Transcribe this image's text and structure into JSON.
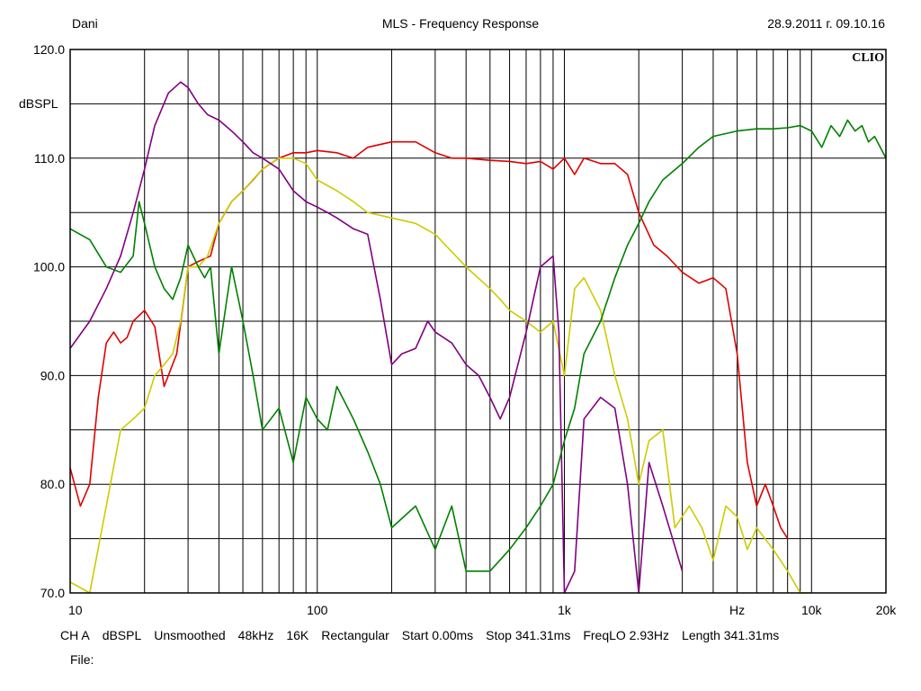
{
  "header": {
    "left": "Dani",
    "center": "MLS - Frequency Response",
    "right": "28.9.2011 г. 09.10.16"
  },
  "logo": "CLIO",
  "footer": {
    "items": [
      "CH A",
      "dBSPL",
      "Unsmoothed",
      "48kHz",
      "16K",
      "Rectangular",
      "Start 0.00ms",
      "Stop 341.31ms",
      "FreqLO 2.93Hz",
      "Length 341.31ms"
    ],
    "file_label": "File:"
  },
  "chart_data": {
    "type": "line",
    "xscale": "log",
    "xlim": [
      10,
      20000
    ],
    "ylim": [
      70,
      120
    ],
    "ylabel": "dBSPL",
    "xlabel": "Hz",
    "grid": true,
    "y_ticks": [
      "120.0",
      "110.0",
      "100.0",
      "90.0",
      "80.0",
      "70.0"
    ],
    "x_ticks": [
      {
        "value": 10,
        "label": "10"
      },
      {
        "value": 100,
        "label": "100"
      },
      {
        "value": 1000,
        "label": "1k"
      },
      {
        "value": 5000,
        "label": "Hz"
      },
      {
        "value": 10000,
        "label": "10k"
      },
      {
        "value": 20000,
        "label": "20k"
      }
    ],
    "series": [
      {
        "color": "#e00000",
        "x": [
          10,
          11,
          12,
          13,
          14,
          15,
          16,
          17,
          18,
          20,
          22,
          24,
          27,
          30,
          33,
          37,
          40,
          45,
          50,
          55,
          60,
          70,
          80,
          90,
          100,
          120,
          140,
          160,
          200,
          250,
          300,
          350,
          400,
          500,
          600,
          700,
          800,
          900,
          1000,
          1100,
          1200,
          1400,
          1600,
          1800,
          2000,
          2300,
          2600,
          3000,
          3500,
          4000,
          4500,
          5000,
          5500,
          6000,
          6500,
          7000,
          7500,
          8000
        ],
        "y": [
          81.5,
          78,
          80,
          88,
          93,
          94,
          93,
          93.5,
          95,
          96,
          94.5,
          89,
          92,
          100,
          100.5,
          101,
          104,
          106,
          107,
          108,
          109,
          110,
          110.5,
          110.5,
          110.7,
          110.5,
          110,
          111,
          111.5,
          111.5,
          110.5,
          110,
          110,
          109.8,
          109.7,
          109.5,
          109.7,
          109,
          110,
          108.5,
          110,
          109.5,
          109.5,
          108.5,
          105,
          102,
          101,
          99.5,
          98.5,
          99,
          98,
          92,
          82,
          78,
          80,
          78,
          76,
          75
        ]
      },
      {
        "color": "#cccc00",
        "x": [
          10,
          12,
          14,
          16,
          18,
          20,
          22,
          24,
          26,
          28,
          30,
          33,
          36,
          40,
          45,
          50,
          60,
          70,
          80,
          90,
          100,
          120,
          140,
          160,
          200,
          250,
          300,
          400,
          500,
          550,
          600,
          700,
          800,
          900,
          1000,
          1100,
          1200,
          1400,
          1600,
          1800,
          2000,
          2200,
          2500,
          2800,
          3200,
          3600,
          4000,
          4500,
          5000,
          5500,
          6000,
          7000,
          8000,
          9000,
          10000
        ],
        "y": [
          71,
          68,
          78,
          85,
          86,
          87,
          90,
          91,
          92,
          95,
          100,
          100,
          101,
          104,
          106,
          107,
          109,
          110,
          110,
          109.5,
          108,
          107,
          106,
          105,
          104.5,
          104,
          103,
          100,
          98,
          97,
          96,
          95,
          94,
          95,
          90,
          98,
          99,
          96,
          90,
          86,
          80,
          84,
          85,
          76,
          78,
          76,
          73,
          78,
          77,
          74,
          76,
          74,
          72,
          70,
          70
        ]
      },
      {
        "color": "#800080",
        "x": [
          10,
          12,
          14,
          16,
          18,
          20,
          22,
          25,
          28,
          30,
          33,
          36,
          40,
          45,
          50,
          55,
          60,
          70,
          80,
          90,
          100,
          110,
          120,
          140,
          160,
          180,
          200,
          220,
          250,
          280,
          300,
          350,
          400,
          450,
          500,
          550,
          600,
          700,
          800,
          900,
          950,
          1000,
          1100,
          1200,
          1400,
          1600,
          1800,
          2000,
          2200,
          2500,
          3000
        ],
        "y": [
          92.5,
          95,
          98,
          101,
          105,
          109,
          113,
          116,
          117,
          116.5,
          115,
          114,
          113.5,
          112.5,
          111.5,
          110.5,
          110,
          109,
          107,
          106,
          105.5,
          105,
          104.5,
          103.5,
          103,
          97,
          91,
          92,
          92.5,
          95,
          94,
          93,
          91,
          90,
          88,
          86,
          88,
          94,
          100,
          101,
          94,
          70,
          72,
          86,
          88,
          87,
          80,
          70,
          82,
          78,
          72
        ]
      },
      {
        "color": "#008000",
        "x": [
          10,
          12,
          14,
          16,
          18,
          19,
          20,
          22,
          24,
          26,
          28,
          30,
          33,
          35,
          37,
          40,
          45,
          50,
          55,
          60,
          70,
          80,
          90,
          100,
          110,
          120,
          140,
          160,
          180,
          200,
          250,
          300,
          350,
          400,
          500,
          600,
          700,
          800,
          900,
          1000,
          1100,
          1200,
          1400,
          1600,
          1800,
          2000,
          2200,
          2500,
          3000,
          3500,
          4000,
          5000,
          6000,
          7000,
          8000,
          9000,
          10000,
          11000,
          12000,
          13000,
          14000,
          15000,
          16000,
          17000,
          18000,
          20000
        ],
        "y": [
          103.5,
          102.5,
          100,
          99.5,
          101,
          106,
          104,
          100,
          98,
          97,
          99,
          102,
          100,
          99,
          100,
          92,
          100,
          95,
          90,
          85,
          87,
          82,
          88,
          86,
          85,
          89,
          86,
          83,
          80,
          76,
          78,
          74,
          78,
          72,
          72,
          74,
          76,
          78,
          80,
          84,
          87,
          92,
          95,
          99,
          102,
          104,
          106,
          108,
          109.5,
          111,
          112,
          112.5,
          112.7,
          112.7,
          112.8,
          113,
          112.5,
          111,
          113,
          112,
          113.5,
          112.5,
          113,
          111.5,
          112,
          110
        ]
      }
    ]
  }
}
